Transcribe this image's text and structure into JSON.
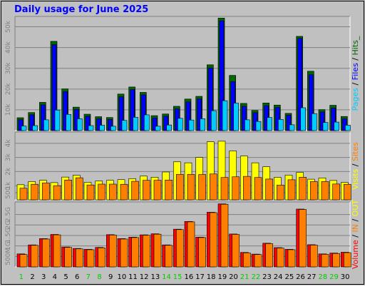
{
  "chart_data": [
    {
      "type": "bar",
      "title": "Daily usage for June 2025",
      "panel": "hits",
      "categories": [
        "1",
        "2",
        "3",
        "4",
        "5",
        "6",
        "7",
        "8",
        "9",
        "10",
        "11",
        "12",
        "13",
        "14",
        "15",
        "16",
        "17",
        "18",
        "19",
        "20",
        "21",
        "22",
        "23",
        "24",
        "25",
        "26",
        "27",
        "28",
        "29",
        "30"
      ],
      "ylim": [
        0,
        55000
      ],
      "yticks": [
        {
          "value": 10000,
          "label": "10k"
        },
        {
          "value": 20000,
          "label": "20k"
        },
        {
          "value": 30000,
          "label": "30k"
        },
        {
          "value": 40000,
          "label": "40k"
        },
        {
          "value": 50000,
          "label": "50k"
        }
      ],
      "series": [
        {
          "name": "Hits",
          "color": "#006600",
          "values": [
            6200,
            8700,
            13600,
            43000,
            20100,
            11300,
            7900,
            6700,
            6300,
            17600,
            21000,
            18400,
            7200,
            8000,
            11700,
            15200,
            16500,
            31700,
            54200,
            26600,
            13100,
            9700,
            13300,
            12300,
            8300,
            45400,
            28600,
            10100,
            12200,
            6800
          ]
        },
        {
          "name": "Files",
          "color": "#0000ff",
          "values": [
            5200,
            7600,
            12400,
            41400,
            18700,
            10200,
            6900,
            5700,
            5400,
            16300,
            19800,
            17200,
            6100,
            6900,
            10500,
            13800,
            15300,
            30200,
            52900,
            23600,
            11700,
            8600,
            12000,
            11200,
            7400,
            44400,
            26900,
            9000,
            10900,
            5700
          ]
        },
        {
          "name": "Pages",
          "color": "#00ccff",
          "values": [
            2200,
            2400,
            5200,
            9900,
            7800,
            5700,
            2400,
            2600,
            2100,
            4900,
            6400,
            7600,
            2100,
            2700,
            5900,
            5100,
            5700,
            9600,
            14400,
            13200,
            5200,
            4400,
            6300,
            5400,
            2800,
            11000,
            8200,
            3900,
            4100,
            2600
          ]
        }
      ],
      "legend": [
        "Pages",
        "/",
        "Files",
        "/",
        "Hits_"
      ]
    },
    {
      "type": "bar",
      "panel": "visits",
      "ylim": [
        0,
        4800
      ],
      "yticks": [
        {
          "value": 500,
          "label": "500"
        },
        {
          "value": 1000,
          "label": "1k"
        },
        {
          "value": 2000,
          "label": "2k"
        },
        {
          "value": 3000,
          "label": "3k"
        },
        {
          "value": 4000,
          "label": "4k"
        }
      ],
      "series": [
        {
          "name": "Visits",
          "color": "#ffff00",
          "values": [
            1070,
            1290,
            1380,
            1220,
            1610,
            1740,
            1240,
            1330,
            1380,
            1430,
            1500,
            1680,
            1600,
            1970,
            2690,
            2620,
            3000,
            4110,
            4150,
            3460,
            3100,
            2620,
            2340,
            1590,
            1750,
            1940,
            1460,
            1550,
            1370,
            1230
          ]
        },
        {
          "name": "Sites",
          "color": "#ff8000",
          "values": [
            820,
            1100,
            1190,
            1000,
            1400,
            1560,
            1050,
            1110,
            1110,
            1100,
            1310,
            1380,
            1380,
            1400,
            1800,
            1800,
            1790,
            1830,
            1580,
            1630,
            1660,
            1580,
            1470,
            1040,
            1420,
            1600,
            1290,
            1290,
            1120,
            1100
          ]
        }
      ],
      "legend": [
        "Visits",
        "/",
        "Sites"
      ]
    },
    {
      "type": "bar",
      "panel": "volume",
      "ylim": [
        0,
        3100
      ],
      "yticks": [
        {
          "value": 500,
          "label": "500M"
        },
        {
          "value": 1000,
          "label": "1G"
        },
        {
          "value": 1500,
          "label": "1.5G"
        },
        {
          "value": 2000,
          "label": "2G"
        },
        {
          "value": 2500,
          "label": "2.5G"
        }
      ],
      "series": [
        {
          "name": "Volume",
          "color": "#ff0000",
          "values": [
            620,
            1050,
            1350,
            1550,
            950,
            880,
            840,
            930,
            1540,
            1350,
            1420,
            1530,
            1580,
            1050,
            1800,
            2170,
            1420,
            2610,
            3010,
            1570,
            690,
            610,
            1130,
            920,
            840,
            2760,
            1060,
            620,
            660,
            700
          ]
        },
        {
          "name": "IN",
          "color": "#ff8000",
          "values": [
            590,
            1030,
            1330,
            1530,
            930,
            860,
            820,
            910,
            1520,
            1330,
            1400,
            1510,
            1560,
            1030,
            1780,
            2150,
            1400,
            2590,
            2990,
            1550,
            670,
            590,
            1110,
            900,
            820,
            2740,
            1040,
            600,
            640,
            680
          ]
        },
        {
          "name": "OUT",
          "color": "#ffff00",
          "values": [
            0,
            0,
            0,
            0,
            0,
            0,
            0,
            0,
            0,
            0,
            0,
            0,
            0,
            0,
            0,
            0,
            0,
            0,
            0,
            0,
            0,
            0,
            0,
            0,
            0,
            0,
            0,
            0,
            0,
            0
          ]
        }
      ],
      "legend": [
        "Volume",
        "/",
        "IN",
        "/",
        "OUT"
      ]
    }
  ],
  "weekend_days": [
    "1",
    "7",
    "8",
    "14",
    "15",
    "21",
    "22",
    "28",
    "29"
  ],
  "colors": {
    "background": "#c0c0c0",
    "title": "#0000ff",
    "hits": "#006600",
    "files": "#0000ff",
    "pages": "#00ccff",
    "visits": "#ffff00",
    "sites": "#ff8000",
    "volume": "#ff0000",
    "weekday_label": "#000000",
    "weekend_label": "#00cc00"
  }
}
